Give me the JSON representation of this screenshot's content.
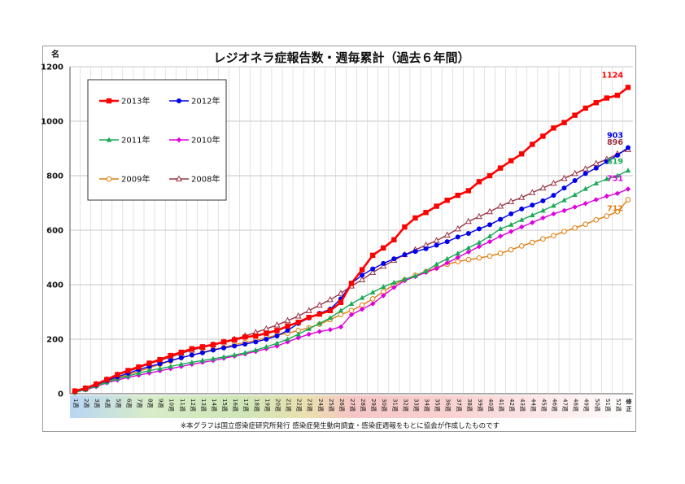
{
  "chart_data": {
    "type": "line",
    "title": "レジオネラ症報告数・週毎累計（過去６年間）",
    "yunit": "名",
    "ylim": [
      0,
      1200
    ],
    "yticks": [
      0,
      200,
      400,
      600,
      800,
      1000,
      1200
    ],
    "grid": "horizontal",
    "legend_position": "top-left",
    "categories": [
      "1週",
      "2週",
      "3週",
      "4週",
      "5週",
      "6週",
      "7週",
      "8週",
      "9週",
      "10週",
      "11週",
      "12週",
      "13週",
      "14週",
      "15週",
      "16週",
      "17週",
      "18週",
      "19週",
      "20週",
      "21週",
      "22週",
      "23週",
      "24週",
      "25週",
      "26週",
      "27週",
      "28週",
      "29週",
      "30週",
      "31週",
      "32週",
      "33週",
      "34週",
      "35週",
      "36週",
      "37週",
      "38週",
      "39週",
      "40週",
      "41週",
      "42週",
      "43週",
      "44週",
      "45週",
      "46週",
      "47週",
      "48週",
      "49週",
      "50週",
      "51週",
      "52週",
      "修正"
    ],
    "series": [
      {
        "name": "2013年",
        "color": "#ff0000",
        "marker": "square",
        "values": [
          10,
          20,
          35,
          52,
          70,
          85,
          98,
          112,
          125,
          140,
          152,
          165,
          172,
          180,
          190,
          198,
          208,
          212,
          222,
          232,
          248,
          262,
          280,
          292,
          305,
          335,
          405,
          455,
          508,
          535,
          565,
          612,
          645,
          665,
          688,
          710,
          728,
          745,
          778,
          800,
          828,
          855,
          880,
          915,
          945,
          975,
          995,
          1022,
          1048,
          1068,
          1085,
          1095,
          1124
        ],
        "end_label": "1124"
      },
      {
        "name": "2012年",
        "color": "#0000ee",
        "marker": "circle",
        "values": [
          8,
          18,
          32,
          48,
          62,
          75,
          88,
          100,
          110,
          122,
          132,
          142,
          150,
          160,
          168,
          175,
          182,
          190,
          200,
          212,
          232,
          258,
          278,
          295,
          310,
          348,
          405,
          435,
          458,
          478,
          495,
          510,
          522,
          532,
          545,
          558,
          575,
          588,
          605,
          620,
          640,
          660,
          678,
          692,
          708,
          728,
          755,
          782,
          808,
          828,
          852,
          875,
          903
        ],
        "end_label": "903"
      },
      {
        "name": "2011年",
        "color": "#1aaa55",
        "marker": "triangle",
        "values": [
          5,
          15,
          28,
          42,
          55,
          65,
          75,
          85,
          92,
          100,
          108,
          115,
          122,
          128,
          135,
          142,
          150,
          160,
          172,
          185,
          200,
          218,
          238,
          258,
          278,
          305,
          330,
          352,
          372,
          392,
          408,
          420,
          432,
          450,
          475,
          495,
          515,
          535,
          555,
          578,
          605,
          620,
          638,
          655,
          672,
          690,
          710,
          730,
          752,
          772,
          788,
          800,
          819
        ],
        "end_label": "819"
      },
      {
        "name": "2010年",
        "color": "#dd00dd",
        "marker": "diamond",
        "values": [
          6,
          14,
          26,
          40,
          50,
          60,
          68,
          76,
          84,
          92,
          100,
          108,
          115,
          122,
          130,
          138,
          146,
          155,
          165,
          175,
          190,
          205,
          218,
          228,
          235,
          245,
          290,
          310,
          330,
          360,
          390,
          415,
          430,
          445,
          460,
          480,
          500,
          520,
          540,
          558,
          578,
          595,
          612,
          628,
          645,
          660,
          672,
          685,
          698,
          712,
          725,
          735,
          751
        ],
        "end_label": "751"
      },
      {
        "name": "2009年",
        "color": "#e07c0c",
        "marker": "circle-open",
        "values": [
          5,
          16,
          30,
          45,
          58,
          70,
          82,
          95,
          108,
          120,
          132,
          142,
          152,
          162,
          170,
          180,
          188,
          195,
          205,
          215,
          222,
          232,
          242,
          255,
          272,
          290,
          305,
          325,
          348,
          375,
          400,
          418,
          435,
          448,
          462,
          475,
          485,
          492,
          498,
          505,
          515,
          528,
          542,
          555,
          568,
          580,
          595,
          608,
          622,
          638,
          652,
          668,
          712
        ],
        "end_label": "712"
      },
      {
        "name": "2008年",
        "color": "#993344",
        "marker": "triangle-open",
        "values": [
          8,
          20,
          35,
          52,
          68,
          82,
          95,
          110,
          122,
          135,
          148,
          160,
          170,
          180,
          190,
          200,
          212,
          225,
          238,
          252,
          268,
          285,
          305,
          325,
          345,
          368,
          395,
          418,
          445,
          468,
          490,
          510,
          528,
          545,
          562,
          582,
          605,
          632,
          650,
          668,
          688,
          705,
          720,
          738,
          755,
          772,
          790,
          808,
          825,
          845,
          860,
          880,
          896
        ],
        "end_label": "896"
      }
    ],
    "footnote": "※本グラフは国立感染症研究所発行 感染症発生動向調査・感染症週報をもとに協会が作成したものです"
  }
}
